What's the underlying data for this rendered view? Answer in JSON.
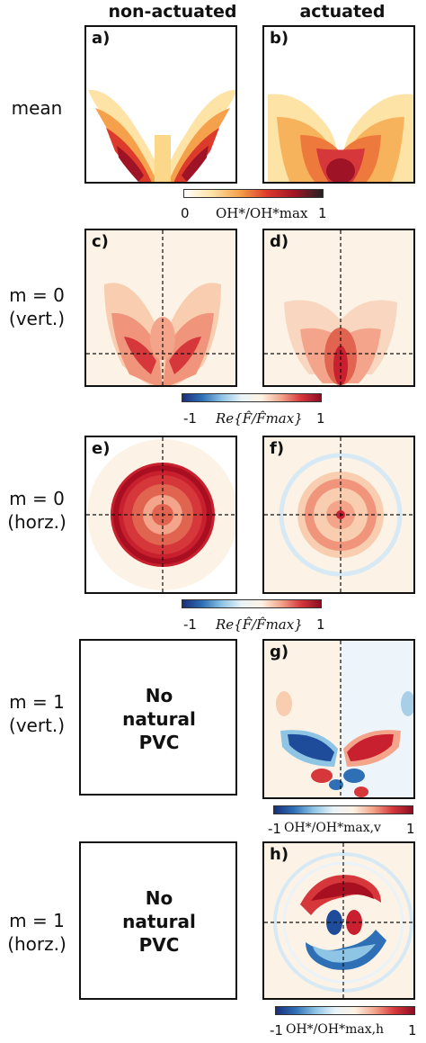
{
  "headers": {
    "col_non_actuated": "non-actuated",
    "col_actuated": "actuated"
  },
  "rows": {
    "mean": "mean",
    "m0_vert": [
      "m = 0",
      "(vert.)"
    ],
    "m0_horz": [
      "m = 0",
      "(horz.)"
    ],
    "m1_vert": [
      "m = 1",
      "(vert.)"
    ],
    "m1_horz": [
      "m = 1",
      "(horz.)"
    ]
  },
  "panels": {
    "a": "a)",
    "b": "b)",
    "c": "c)",
    "d": "d)",
    "e": "e)",
    "f": "f)",
    "g": "g)",
    "h": "h)"
  },
  "no_pvc": [
    "No",
    "natural",
    "PVC"
  ],
  "colorbars": {
    "mean": {
      "min": "0",
      "max": "1",
      "label": "OH*/OH*max",
      "colors": [
        "#ffffff",
        "#fde3a6",
        "#f5a04a",
        "#dc3a2a",
        "#9e1325",
        "#222222"
      ]
    },
    "re1": {
      "min": "-1",
      "max": "1",
      "label": "Re{F̂/F̂max}",
      "colors": [
        "#1a2f7a",
        "#2e6fb5",
        "#8ec4e4",
        "#e9f3f8",
        "#fdf2e3",
        "#f3a48a",
        "#d6373b",
        "#8b0e23"
      ]
    },
    "re2": {
      "min": "-1",
      "max": "1",
      "label": "Re{F̂/F̂max}"
    },
    "oh_v": {
      "min": "-1",
      "max": "1",
      "label": "OH*/OH*max,v"
    },
    "oh_h": {
      "min": "-1",
      "max": "1",
      "label": "OH*/OH*max,h"
    }
  },
  "colors": {
    "frame": "#111111",
    "background_map": "#fcf3e6",
    "positive": "#c8202e",
    "negative": "#1f4c9a",
    "mean_peak": "#a80f20"
  }
}
